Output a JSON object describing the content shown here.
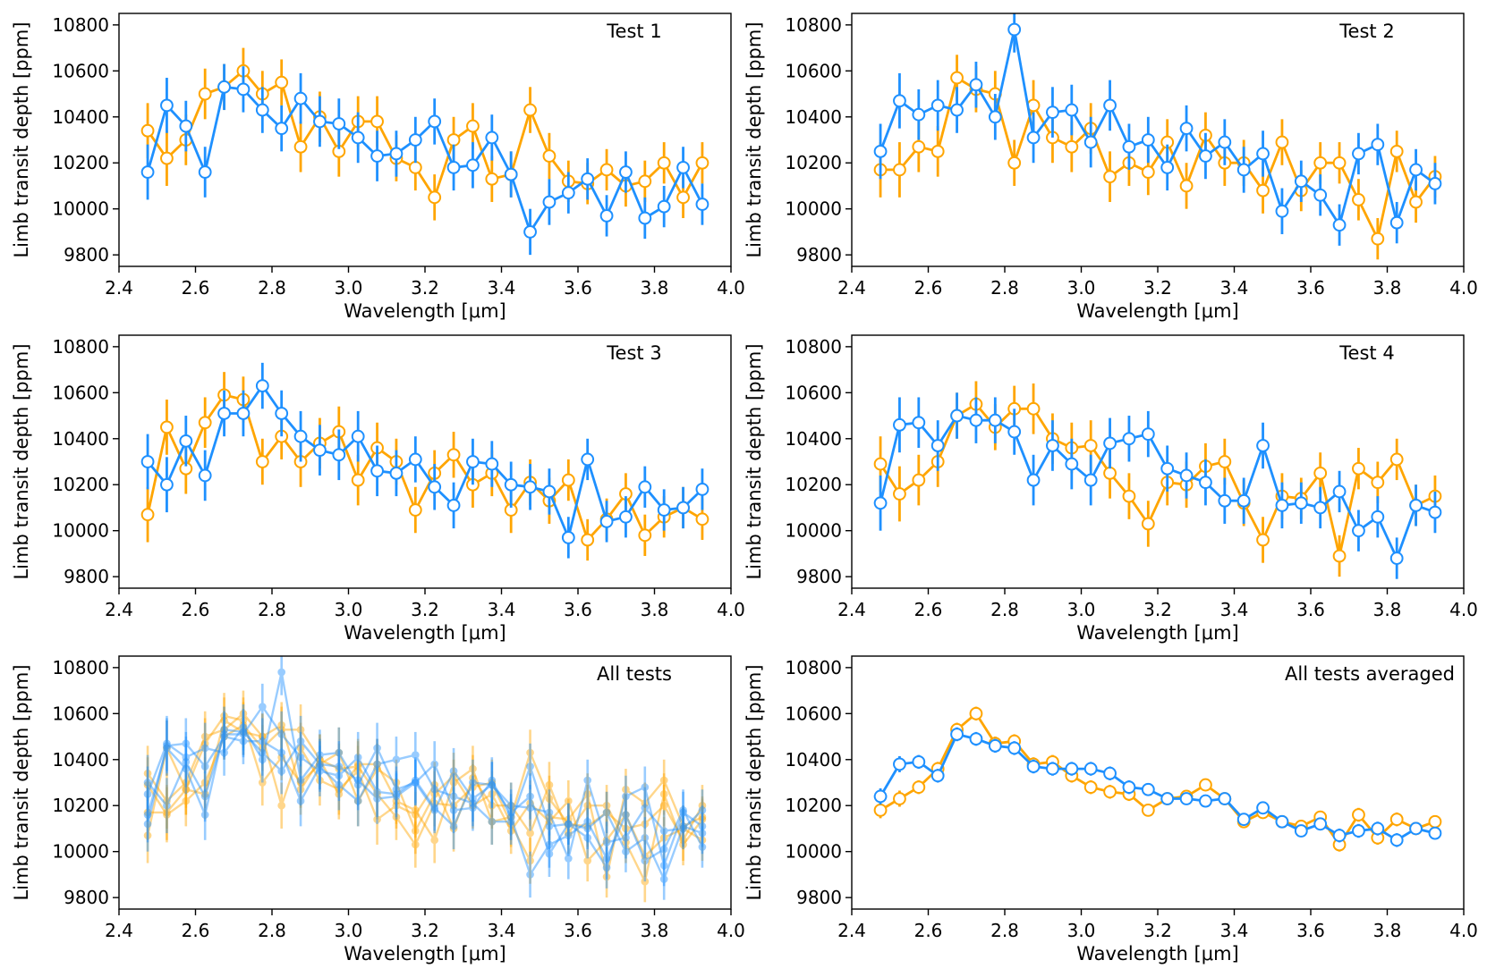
{
  "chart_data": [
    {
      "type": "line",
      "annotation": "Test 1",
      "xlabel": "Wavelength [μm]",
      "ylabel": "Limb transit depth [ppm]",
      "xlim": [
        2.4,
        4.0
      ],
      "ylim": [
        9750,
        10850
      ],
      "xticks": [
        2.4,
        2.6,
        2.8,
        3.0,
        3.2,
        3.4,
        3.6,
        3.8,
        4.0
      ],
      "yticks": [
        9800,
        10000,
        10200,
        10400,
        10600,
        10800
      ],
      "grid": false,
      "x": [
        2.475,
        2.525,
        2.575,
        2.625,
        2.675,
        2.725,
        2.775,
        2.825,
        2.875,
        2.925,
        2.975,
        3.025,
        3.075,
        3.125,
        3.175,
        3.225,
        3.275,
        3.325,
        3.375,
        3.425,
        3.475,
        3.525,
        3.575,
        3.625,
        3.675,
        3.725,
        3.775,
        3.825,
        3.875,
        3.925
      ],
      "series": [
        {
          "color": "#FFA500",
          "values": [
            10340,
            10220,
            10300,
            10500,
            10530,
            10600,
            10500,
            10550,
            10270,
            10400,
            10250,
            10380,
            10380,
            10220,
            10180,
            10050,
            10300,
            10360,
            10130,
            10150,
            10430,
            10230,
            10120,
            10110,
            10170,
            10100,
            10120,
            10200,
            10050,
            10200
          ],
          "errors": [
            120,
            120,
            110,
            110,
            100,
            100,
            100,
            100,
            110,
            110,
            110,
            110,
            110,
            100,
            100,
            100,
            100,
            100,
            100,
            100,
            100,
            100,
            90,
            90,
            90,
            90,
            90,
            90,
            90,
            90
          ]
        },
        {
          "color": "#1E90FF",
          "values": [
            10160,
            10450,
            10360,
            10160,
            10530,
            10520,
            10430,
            10350,
            10480,
            10380,
            10370,
            10310,
            10230,
            10240,
            10300,
            10380,
            10180,
            10190,
            10310,
            10150,
            9900,
            10030,
            10070,
            10130,
            9970,
            10160,
            9960,
            10010,
            10180,
            10020
          ],
          "errors": [
            120,
            120,
            110,
            110,
            100,
            100,
            100,
            100,
            110,
            110,
            110,
            110,
            110,
            100,
            100,
            100,
            100,
            100,
            100,
            100,
            100,
            100,
            90,
            90,
            90,
            90,
            90,
            90,
            90,
            90
          ]
        }
      ]
    },
    {
      "type": "line",
      "annotation": "Test 2",
      "xlabel": "Wavelength [μm]",
      "ylabel": "Limb transit depth [ppm]",
      "xlim": [
        2.4,
        4.0
      ],
      "ylim": [
        9750,
        10850
      ],
      "xticks": [
        2.4,
        2.6,
        2.8,
        3.0,
        3.2,
        3.4,
        3.6,
        3.8,
        4.0
      ],
      "yticks": [
        9800,
        10000,
        10200,
        10400,
        10600,
        10800
      ],
      "grid": false,
      "x": [
        2.475,
        2.525,
        2.575,
        2.625,
        2.675,
        2.725,
        2.775,
        2.825,
        2.875,
        2.925,
        2.975,
        3.025,
        3.075,
        3.125,
        3.175,
        3.225,
        3.275,
        3.325,
        3.375,
        3.425,
        3.475,
        3.525,
        3.575,
        3.625,
        3.675,
        3.725,
        3.775,
        3.825,
        3.875,
        3.925
      ],
      "series": [
        {
          "color": "#FFA500",
          "values": [
            10170,
            10170,
            10270,
            10250,
            10570,
            10520,
            10500,
            10200,
            10450,
            10310,
            10270,
            10350,
            10140,
            10200,
            10160,
            10290,
            10100,
            10320,
            10200,
            10200,
            10080,
            10290,
            10080,
            10200,
            10200,
            10040,
            9870,
            10250,
            10030,
            10140
          ],
          "errors": [
            120,
            120,
            110,
            110,
            100,
            100,
            100,
            100,
            110,
            110,
            110,
            110,
            110,
            100,
            100,
            100,
            100,
            100,
            100,
            100,
            100,
            100,
            90,
            90,
            90,
            90,
            90,
            90,
            90,
            90
          ]
        },
        {
          "color": "#1E90FF",
          "values": [
            10250,
            10470,
            10410,
            10450,
            10430,
            10540,
            10400,
            10780,
            10310,
            10420,
            10430,
            10290,
            10450,
            10270,
            10300,
            10180,
            10350,
            10230,
            10290,
            10170,
            10240,
            9990,
            10120,
            10060,
            9930,
            10240,
            10280,
            9940,
            10170,
            10110
          ],
          "errors": [
            120,
            120,
            110,
            110,
            100,
            100,
            100,
            100,
            110,
            110,
            110,
            110,
            110,
            100,
            100,
            100,
            100,
            100,
            100,
            100,
            100,
            100,
            90,
            90,
            90,
            90,
            90,
            90,
            90,
            90
          ]
        }
      ]
    },
    {
      "type": "line",
      "annotation": "Test 3",
      "xlabel": "Wavelength [μm]",
      "ylabel": "Limb transit depth [ppm]",
      "xlim": [
        2.4,
        4.0
      ],
      "ylim": [
        9750,
        10850
      ],
      "xticks": [
        2.4,
        2.6,
        2.8,
        3.0,
        3.2,
        3.4,
        3.6,
        3.8,
        4.0
      ],
      "yticks": [
        9800,
        10000,
        10200,
        10400,
        10600,
        10800
      ],
      "grid": false,
      "x": [
        2.475,
        2.525,
        2.575,
        2.625,
        2.675,
        2.725,
        2.775,
        2.825,
        2.875,
        2.925,
        2.975,
        3.025,
        3.075,
        3.125,
        3.175,
        3.225,
        3.275,
        3.325,
        3.375,
        3.425,
        3.475,
        3.525,
        3.575,
        3.625,
        3.675,
        3.725,
        3.775,
        3.825,
        3.875,
        3.925
      ],
      "series": [
        {
          "color": "#FFA500",
          "values": [
            10070,
            10450,
            10270,
            10470,
            10590,
            10570,
            10300,
            10410,
            10300,
            10380,
            10430,
            10220,
            10360,
            10300,
            10090,
            10250,
            10330,
            10200,
            10250,
            10090,
            10210,
            10130,
            10220,
            9960,
            10050,
            10160,
            9980,
            10060,
            10100,
            10050
          ],
          "errors": [
            120,
            120,
            110,
            110,
            100,
            100,
            100,
            100,
            110,
            110,
            110,
            110,
            110,
            100,
            100,
            100,
            100,
            100,
            100,
            100,
            100,
            100,
            90,
            90,
            90,
            90,
            90,
            90,
            90,
            90
          ]
        },
        {
          "color": "#1E90FF",
          "values": [
            10300,
            10200,
            10390,
            10240,
            10510,
            10510,
            10630,
            10510,
            10410,
            10350,
            10330,
            10410,
            10260,
            10250,
            10310,
            10190,
            10110,
            10300,
            10290,
            10200,
            10190,
            10170,
            9970,
            10310,
            10040,
            10060,
            10190,
            10090,
            10100,
            10180
          ],
          "errors": [
            120,
            120,
            110,
            110,
            100,
            100,
            100,
            100,
            110,
            110,
            110,
            110,
            110,
            100,
            100,
            100,
            100,
            100,
            100,
            100,
            100,
            100,
            90,
            90,
            90,
            90,
            90,
            90,
            90,
            90
          ]
        }
      ]
    },
    {
      "type": "line",
      "annotation": "Test 4",
      "xlabel": "Wavelength [μm]",
      "ylabel": "Limb transit depth [ppm]",
      "xlim": [
        2.4,
        4.0
      ],
      "ylim": [
        9750,
        10850
      ],
      "xticks": [
        2.4,
        2.6,
        2.8,
        3.0,
        3.2,
        3.4,
        3.6,
        3.8,
        4.0
      ],
      "yticks": [
        9800,
        10000,
        10200,
        10400,
        10600,
        10800
      ],
      "grid": false,
      "x": [
        2.475,
        2.525,
        2.575,
        2.625,
        2.675,
        2.725,
        2.775,
        2.825,
        2.875,
        2.925,
        2.975,
        3.025,
        3.075,
        3.125,
        3.175,
        3.225,
        3.275,
        3.325,
        3.375,
        3.425,
        3.475,
        3.525,
        3.575,
        3.625,
        3.675,
        3.725,
        3.775,
        3.825,
        3.875,
        3.925
      ],
      "series": [
        {
          "color": "#FFA500",
          "values": [
            10290,
            10160,
            10220,
            10300,
            10500,
            10550,
            10450,
            10530,
            10530,
            10400,
            10360,
            10370,
            10250,
            10150,
            10030,
            10210,
            10200,
            10280,
            10300,
            10120,
            9960,
            10150,
            10140,
            10250,
            9890,
            10270,
            10210,
            10310,
            10110,
            10150
          ],
          "errors": [
            120,
            120,
            110,
            110,
            100,
            100,
            100,
            100,
            110,
            110,
            110,
            110,
            110,
            100,
            100,
            100,
            100,
            100,
            100,
            100,
            100,
            100,
            90,
            90,
            90,
            90,
            90,
            90,
            90,
            90
          ]
        },
        {
          "color": "#1E90FF",
          "values": [
            10120,
            10460,
            10470,
            10370,
            10500,
            10480,
            10480,
            10430,
            10220,
            10370,
            10290,
            10220,
            10380,
            10400,
            10420,
            10270,
            10240,
            10210,
            10130,
            10130,
            10370,
            10110,
            10120,
            10100,
            10170,
            10000,
            10060,
            9880,
            10110,
            10080
          ],
          "errors": [
            120,
            120,
            110,
            110,
            100,
            100,
            100,
            100,
            110,
            110,
            110,
            110,
            110,
            100,
            100,
            100,
            100,
            100,
            100,
            100,
            100,
            100,
            90,
            90,
            90,
            90,
            90,
            90,
            90,
            90
          ]
        }
      ]
    },
    {
      "type": "line",
      "annotation": "All tests",
      "xlabel": "Wavelength [μm]",
      "ylabel": "Limb transit depth [ppm]",
      "xlim": [
        2.4,
        4.0
      ],
      "ylim": [
        9750,
        10850
      ],
      "xticks": [
        2.4,
        2.6,
        2.8,
        3.0,
        3.2,
        3.4,
        3.6,
        3.8,
        4.0
      ],
      "yticks": [
        9800,
        10000,
        10200,
        10400,
        10600,
        10800
      ],
      "grid": false,
      "overlay_of_tests": [
        1,
        2,
        3,
        4
      ],
      "series_alpha": 0.45
    },
    {
      "type": "line",
      "annotation": "All tests averaged",
      "xlabel": "Wavelength [μm]",
      "ylabel": "Limb transit depth [ppm]",
      "xlim": [
        2.4,
        4.0
      ],
      "ylim": [
        9750,
        10850
      ],
      "xticks": [
        2.4,
        2.6,
        2.8,
        3.0,
        3.2,
        3.4,
        3.6,
        3.8,
        4.0
      ],
      "yticks": [
        9800,
        10000,
        10200,
        10400,
        10600,
        10800
      ],
      "grid": false,
      "x": [
        2.475,
        2.525,
        2.575,
        2.625,
        2.675,
        2.725,
        2.775,
        2.825,
        2.875,
        2.925,
        2.975,
        3.025,
        3.075,
        3.125,
        3.175,
        3.225,
        3.275,
        3.325,
        3.375,
        3.425,
        3.475,
        3.525,
        3.575,
        3.625,
        3.675,
        3.725,
        3.775,
        3.825,
        3.875,
        3.925
      ],
      "series": [
        {
          "color": "#FFA500",
          "values": [
            10180,
            10230,
            10280,
            10360,
            10530,
            10600,
            10470,
            10480,
            10380,
            10390,
            10330,
            10280,
            10260,
            10250,
            10180,
            10230,
            10240,
            10290,
            10230,
            10130,
            10170,
            10130,
            10110,
            10150,
            10030,
            10160,
            10060,
            10140,
            10100,
            10130
          ],
          "errors": [
            35,
            35,
            30,
            30,
            30,
            30,
            30,
            30,
            30,
            30,
            30,
            30,
            30,
            30,
            25,
            25,
            25,
            25,
            25,
            25,
            25,
            25,
            25,
            25,
            30,
            30,
            30,
            30,
            25,
            25
          ]
        },
        {
          "color": "#1E90FF",
          "values": [
            10240,
            10380,
            10390,
            10330,
            10510,
            10490,
            10460,
            10450,
            10370,
            10360,
            10360,
            10360,
            10340,
            10280,
            10270,
            10230,
            10230,
            10220,
            10230,
            10140,
            10190,
            10130,
            10090,
            10120,
            10070,
            10090,
            10100,
            10050,
            10100,
            10080
          ],
          "errors": [
            35,
            35,
            30,
            30,
            30,
            30,
            30,
            30,
            30,
            30,
            30,
            30,
            30,
            30,
            25,
            25,
            25,
            25,
            25,
            25,
            25,
            25,
            25,
            25,
            30,
            30,
            30,
            30,
            25,
            25
          ]
        }
      ]
    }
  ]
}
